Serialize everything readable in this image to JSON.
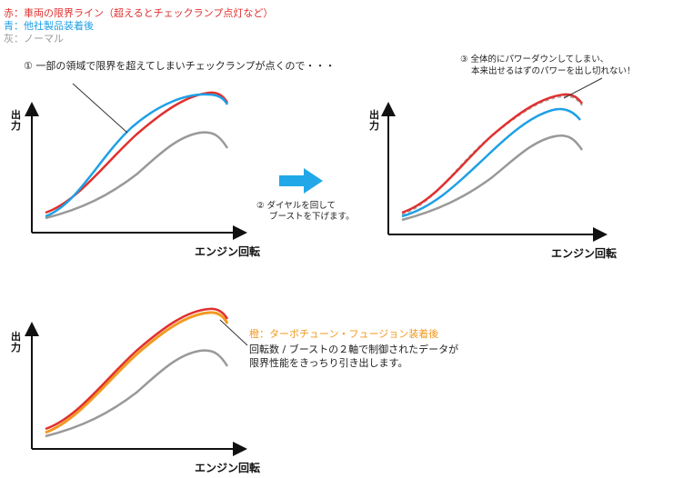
{
  "legend": {
    "red": "赤：車両の限界ライン（超えるとチェックランプ点灯など）",
    "blue": "青：他社製品装着後",
    "gray": "灰：ノーマル"
  },
  "notes": {
    "note1": "① 一部の領域で限界を超えてしまいチェックランプが点くので・・・",
    "note2_line1": "② ダイヤルを回して",
    "note2_line2": "ブーストを下げます。",
    "note3_line1": "③ 全体的にパワーダウンしてしまい、",
    "note3_line2": "本来出せるはずのパワーを出し切れない！",
    "orange_title": "橙：ターボチューン・フュージョン装着後",
    "orange_line1": "回転数 / ブーストの２軸で制御されたデータが",
    "orange_line2": "限界性能をきっちり引き出します。"
  },
  "axes": {
    "y_label_1": "出",
    "y_label_2": "力",
    "x_label": "エンジン回転"
  },
  "colors": {
    "red": "#e0302e",
    "blue": "#1ea0e6",
    "gray": "#999999",
    "orange": "#f29a1f",
    "arrow": "#22a8e8",
    "note_orange": "#f29a1f",
    "dashed": "#aaaaaa"
  }
}
